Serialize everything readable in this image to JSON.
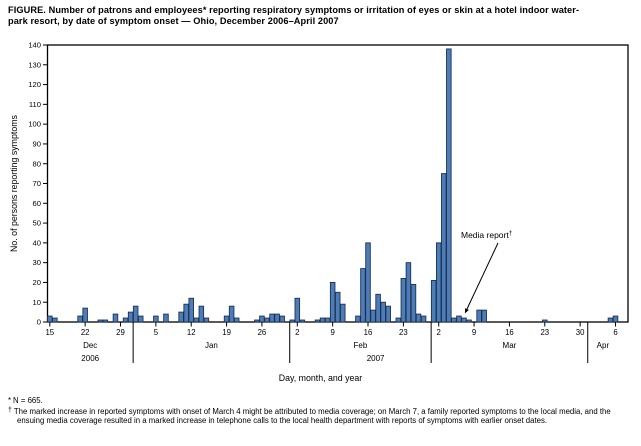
{
  "title_lines": [
    "FIGURE. Number of patrons and employees* reporting respiratory symptoms or irritation of eyes or skin at a hotel indoor water-",
    "park resort, by date of symptom onset — Ohio, December 2006–April 2007"
  ],
  "footnotes": [
    {
      "marker": "*",
      "text": "N = 665."
    },
    {
      "marker": "†",
      "text": "The marked increase in reported symptoms with onset of March 4 might be attributed to media coverage; on March 7, a family reported symptoms to the local media, and the ensuing media coverage resulted in a marked increase in telephone calls to the local health department with reports of symptoms with earlier onset dates."
    }
  ],
  "chart_data": {
    "type": "bar",
    "ylabel": "No. of persons reporting symptoms",
    "xlabel": "Day, month, and year",
    "ylim": [
      0,
      140
    ],
    "ytick_step": 10,
    "grid": false,
    "legend": null,
    "x_start": "2006-12-15",
    "x_end": "2007-04-06",
    "annotation": {
      "text": "Media report",
      "marker": "†"
    },
    "colors": {
      "bar_fill": "#4d7db9",
      "bar_border": "#1f3150",
      "axis": "#000000"
    },
    "xticks": [
      {
        "label": "15",
        "date": "2006-12-15"
      },
      {
        "label": "22",
        "date": "2006-12-22"
      },
      {
        "label": "29",
        "date": "2006-12-29"
      },
      {
        "label": "5",
        "date": "2007-01-05"
      },
      {
        "label": "12",
        "date": "2007-01-12"
      },
      {
        "label": "19",
        "date": "2007-01-19"
      },
      {
        "label": "26",
        "date": "2007-01-26"
      },
      {
        "label": "2",
        "date": "2007-02-02"
      },
      {
        "label": "9",
        "date": "2007-02-09"
      },
      {
        "label": "16",
        "date": "2007-02-16"
      },
      {
        "label": "23",
        "date": "2007-02-23"
      },
      {
        "label": "2",
        "date": "2007-03-02"
      },
      {
        "label": "9",
        "date": "2007-03-09"
      },
      {
        "label": "16",
        "date": "2007-03-16"
      },
      {
        "label": "23",
        "date": "2007-03-23"
      },
      {
        "label": "30",
        "date": "2007-03-30"
      },
      {
        "label": "6",
        "date": "2007-04-06"
      }
    ],
    "months": [
      {
        "label": "Dec",
        "start": "2006-12-15",
        "end": "2006-12-31",
        "divider_after": true
      },
      {
        "label": "Jan",
        "start": "2007-01-01",
        "end": "2007-01-31",
        "divider_after": true
      },
      {
        "label": "Feb",
        "start": "2007-02-01",
        "end": "2007-02-28",
        "divider_after": true
      },
      {
        "label": "Mar",
        "start": "2007-03-01",
        "end": "2007-03-31",
        "divider_after": true
      },
      {
        "label": "Apr",
        "start": "2007-04-01",
        "end": "2007-04-06",
        "divider_after": false
      }
    ],
    "years": [
      {
        "label": "2006",
        "start": "2006-12-15",
        "end": "2006-12-31"
      },
      {
        "label": "2007",
        "start": "2007-01-01",
        "end": "2007-04-06"
      }
    ],
    "points": [
      {
        "date": "2006-12-15",
        "value": 3
      },
      {
        "date": "2006-12-16",
        "value": 2
      },
      {
        "date": "2006-12-21",
        "value": 3
      },
      {
        "date": "2006-12-22",
        "value": 7
      },
      {
        "date": "2006-12-25",
        "value": 1
      },
      {
        "date": "2006-12-26",
        "value": 1
      },
      {
        "date": "2006-12-28",
        "value": 4
      },
      {
        "date": "2006-12-30",
        "value": 2
      },
      {
        "date": "2006-12-31",
        "value": 5
      },
      {
        "date": "2007-01-01",
        "value": 8
      },
      {
        "date": "2007-01-02",
        "value": 3
      },
      {
        "date": "2007-01-05",
        "value": 3
      },
      {
        "date": "2007-01-07",
        "value": 4
      },
      {
        "date": "2007-01-10",
        "value": 5
      },
      {
        "date": "2007-01-11",
        "value": 9
      },
      {
        "date": "2007-01-12",
        "value": 12
      },
      {
        "date": "2007-01-13",
        "value": 2
      },
      {
        "date": "2007-01-14",
        "value": 8
      },
      {
        "date": "2007-01-15",
        "value": 2
      },
      {
        "date": "2007-01-19",
        "value": 3
      },
      {
        "date": "2007-01-20",
        "value": 8
      },
      {
        "date": "2007-01-21",
        "value": 2
      },
      {
        "date": "2007-01-25",
        "value": 1
      },
      {
        "date": "2007-01-26",
        "value": 3
      },
      {
        "date": "2007-01-27",
        "value": 2
      },
      {
        "date": "2007-01-28",
        "value": 4
      },
      {
        "date": "2007-01-29",
        "value": 4
      },
      {
        "date": "2007-01-30",
        "value": 3
      },
      {
        "date": "2007-02-01",
        "value": 1
      },
      {
        "date": "2007-02-02",
        "value": 12
      },
      {
        "date": "2007-02-03",
        "value": 1
      },
      {
        "date": "2007-02-06",
        "value": 1
      },
      {
        "date": "2007-02-07",
        "value": 2
      },
      {
        "date": "2007-02-08",
        "value": 2
      },
      {
        "date": "2007-02-09",
        "value": 20
      },
      {
        "date": "2007-02-10",
        "value": 15
      },
      {
        "date": "2007-02-11",
        "value": 9
      },
      {
        "date": "2007-02-14",
        "value": 3
      },
      {
        "date": "2007-02-15",
        "value": 27
      },
      {
        "date": "2007-02-16",
        "value": 40
      },
      {
        "date": "2007-02-17",
        "value": 6
      },
      {
        "date": "2007-02-18",
        "value": 14
      },
      {
        "date": "2007-02-19",
        "value": 10
      },
      {
        "date": "2007-02-20",
        "value": 8
      },
      {
        "date": "2007-02-22",
        "value": 2
      },
      {
        "date": "2007-02-23",
        "value": 22
      },
      {
        "date": "2007-02-24",
        "value": 30
      },
      {
        "date": "2007-02-25",
        "value": 19
      },
      {
        "date": "2007-02-26",
        "value": 4
      },
      {
        "date": "2007-02-27",
        "value": 3
      },
      {
        "date": "2007-03-01",
        "value": 21
      },
      {
        "date": "2007-03-02",
        "value": 40
      },
      {
        "date": "2007-03-03",
        "value": 75
      },
      {
        "date": "2007-03-04",
        "value": 138
      },
      {
        "date": "2007-03-05",
        "value": 2
      },
      {
        "date": "2007-03-06",
        "value": 3
      },
      {
        "date": "2007-03-07",
        "value": 2
      },
      {
        "date": "2007-03-08",
        "value": 1
      },
      {
        "date": "2007-03-10",
        "value": 6
      },
      {
        "date": "2007-03-11",
        "value": 6
      },
      {
        "date": "2007-03-23",
        "value": 1
      },
      {
        "date": "2007-04-05",
        "value": 2
      },
      {
        "date": "2007-04-06",
        "value": 3
      }
    ]
  }
}
